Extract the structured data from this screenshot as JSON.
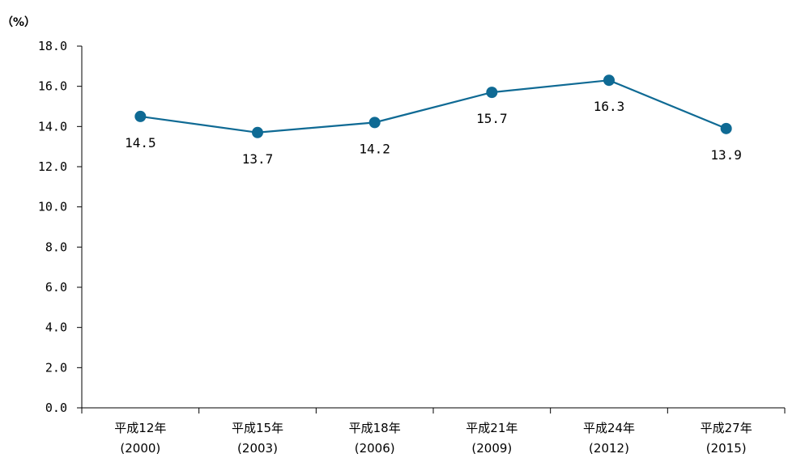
{
  "chart_data": {
    "type": "line",
    "unit_label": "（%）",
    "ylim": [
      0,
      18
    ],
    "y_ticks": [
      "0.0",
      "2.0",
      "4.0",
      "6.0",
      "8.0",
      "10.0",
      "12.0",
      "14.0",
      "16.0",
      "18.0"
    ],
    "categories": [
      {
        "era": "平成12年",
        "year": "(2000)"
      },
      {
        "era": "平成15年",
        "year": "(2003)"
      },
      {
        "era": "平成18年",
        "year": "(2006)"
      },
      {
        "era": "平成21年",
        "year": "(2009)"
      },
      {
        "era": "平成24年",
        "year": "(2012)"
      },
      {
        "era": "平成27年",
        "year": "(2015)"
      }
    ],
    "series": [
      {
        "values": [
          14.5,
          13.7,
          14.2,
          15.7,
          16.3,
          13.9
        ],
        "labels": [
          "14.5",
          "13.7",
          "14.2",
          "15.7",
          "16.3",
          "13.9"
        ],
        "color": "#0f6a94"
      }
    ],
    "grid": false,
    "legend": "none"
  }
}
